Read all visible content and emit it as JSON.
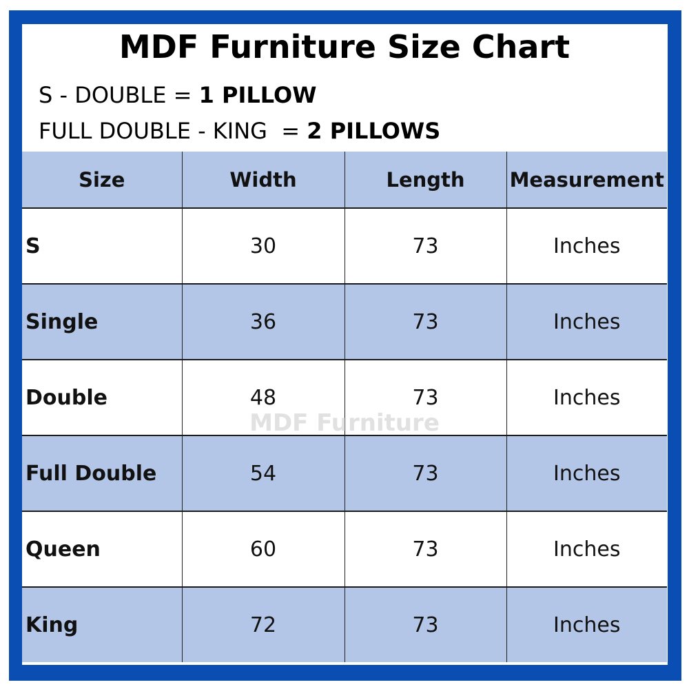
{
  "title": "MDF Furniture Size Chart",
  "notes": [
    {
      "label": "S - DOUBLE = ",
      "value": "1 PILLOW"
    },
    {
      "label": "FULL DOUBLE - KING  = ",
      "value": "2 PILLOWS"
    }
  ],
  "table": {
    "headers": [
      "Size",
      "Width",
      "Length",
      "Measurement"
    ],
    "rows": [
      {
        "size": "S",
        "width": "30",
        "length": "73",
        "unit": "Inches"
      },
      {
        "size": "Single",
        "width": "36",
        "length": "73",
        "unit": "Inches"
      },
      {
        "size": "Double",
        "width": "48",
        "length": "73",
        "unit": "Inches"
      },
      {
        "size": "Full Double",
        "width": "54",
        "length": "73",
        "unit": "Inches"
      },
      {
        "size": "Queen",
        "width": "60",
        "length": "73",
        "unit": "Inches"
      },
      {
        "size": "King",
        "width": "72",
        "length": "73",
        "unit": "Inches"
      }
    ]
  },
  "watermark": "MDF Furniture",
  "colors": {
    "border": "#0a4db3",
    "header_fill": "#b4c6e7",
    "alt_row_fill": "#b4c6e7"
  }
}
